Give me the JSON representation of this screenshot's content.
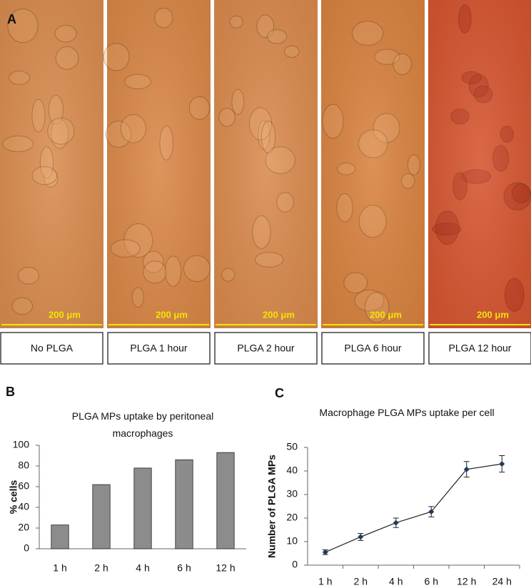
{
  "panel_label": "A",
  "panels": [
    {
      "label": "No PLGA",
      "scale_bar": "200 μm",
      "color": "#d98c4e"
    },
    {
      "label": "PLGA 1 hour",
      "scale_bar": "200 μm",
      "color": "#da8747"
    },
    {
      "label": "PLGA 2 hour",
      "scale_bar": "200 μm",
      "color": "#da8a4d"
    },
    {
      "label": "PLGA 6 hour",
      "scale_bar": "200 μm",
      "color": "#d9823f"
    },
    {
      "label": "PLGA 12 hour",
      "scale_bar": "200 μm",
      "color": "#d65530"
    }
  ],
  "chart_data": [
    {
      "type": "bar",
      "panel_label": "B",
      "title": "PLGA MPs uptake by peritoneal macrophages",
      "y_label": "% cells",
      "categories": [
        "1 h",
        "2 h",
        "4 h",
        "6 h",
        "12 h"
      ],
      "values": [
        23,
        62,
        78,
        86,
        93
      ],
      "color": "#8c8c8c",
      "ylim": [
        0,
        100
      ],
      "yticks": [
        0,
        20,
        40,
        60,
        80,
        100
      ],
      "grid": false
    },
    {
      "type": "line",
      "panel_label": "C",
      "title": "Macrophage PLGA MPs uptake per cell",
      "y_label": "Number of PLGA MPs",
      "categories": [
        "1 h",
        "2 h",
        "4 h",
        "6 h",
        "12 h",
        "24 h"
      ],
      "values": [
        5.5,
        12,
        18,
        22.7,
        40.7,
        43
      ],
      "errors": [
        1,
        1.5,
        2,
        2.2,
        3.3,
        3.5
      ],
      "color": "#1f3a5f",
      "ylim": [
        0,
        50
      ],
      "yticks": [
        0,
        10,
        20,
        30,
        40,
        50
      ],
      "grid": false
    }
  ]
}
